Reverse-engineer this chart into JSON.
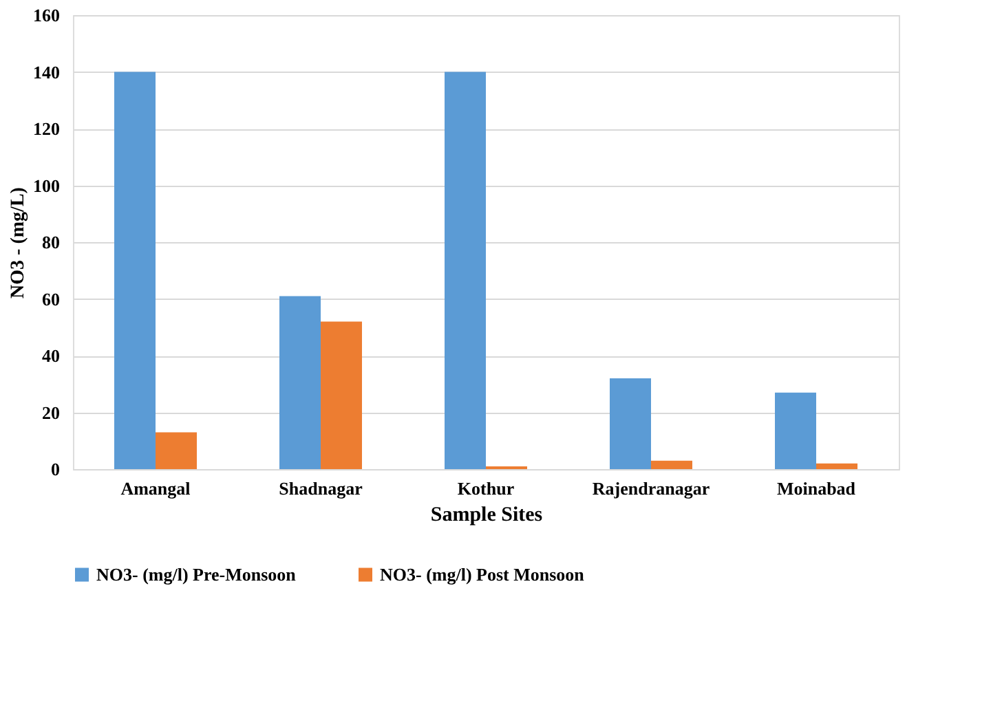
{
  "chart_data": {
    "type": "bar",
    "xlabel": "Sample Sites",
    "ylabel": "NO3 - (mg/L)",
    "categories": [
      "Amangal",
      "Shadnagar",
      "Kothur",
      "Rajendranagar",
      "Moinabad"
    ],
    "series": [
      {
        "name": "NO3-  (mg/l) Pre-Monsoon",
        "color": "#5b9bd5",
        "values": [
          140,
          61,
          140,
          32,
          27
        ]
      },
      {
        "name": "NO3-  (mg/l) Post Monsoon",
        "color": "#ed7d31",
        "values": [
          13,
          52,
          1,
          3,
          2
        ]
      }
    ],
    "ylim": [
      0,
      160
    ],
    "yticks": [
      0,
      20,
      40,
      60,
      80,
      100,
      120,
      140,
      160
    ],
    "grid": "y",
    "legend": "bottom"
  }
}
